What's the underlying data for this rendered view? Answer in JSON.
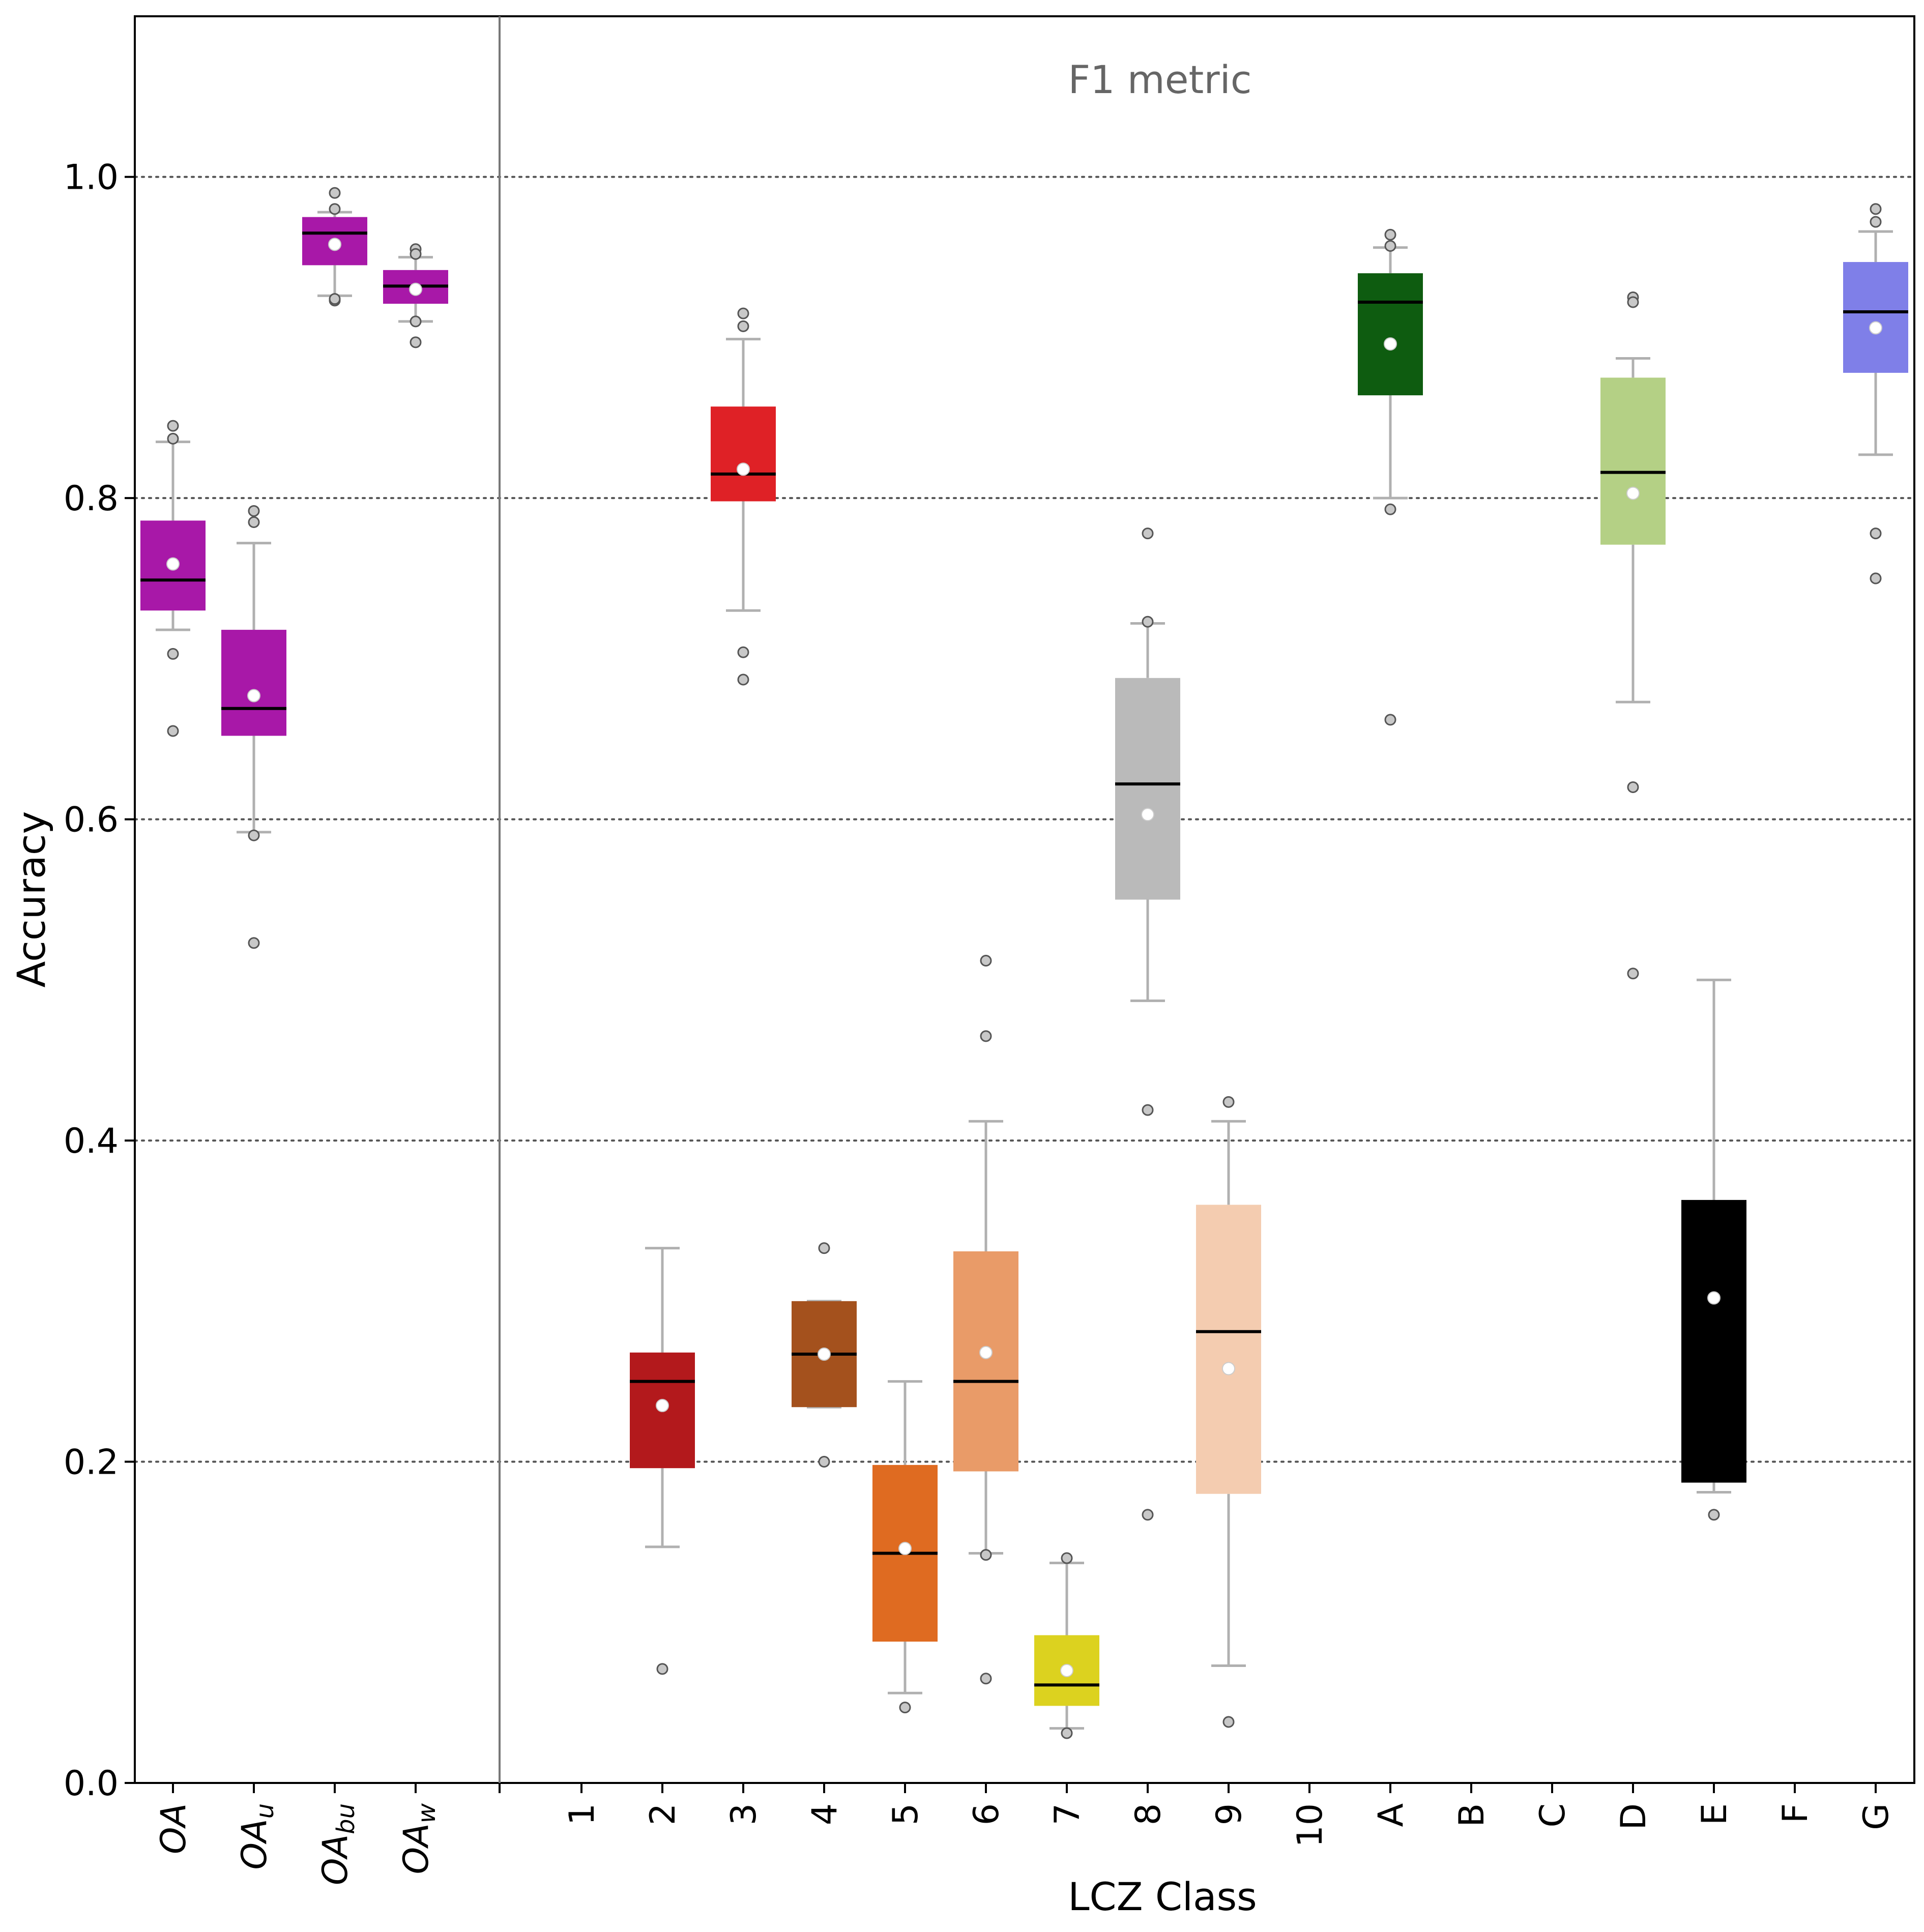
{
  "chart_data": {
    "type": "box",
    "title": "F1 metric",
    "xlabel": "LCZ Class",
    "ylabel": "Accuracy",
    "ylim": [
      0.0,
      1.1
    ],
    "yticks": [
      0.0,
      0.2,
      0.4,
      0.6,
      0.8,
      1.0
    ],
    "ytick_labels": [
      "0.0",
      "0.2",
      "0.4",
      "0.6",
      "0.8",
      "1.0"
    ],
    "grid": "horizontal dotted at each y tick",
    "colors": {
      "whisker": "#b0b0b0",
      "median": "#000000",
      "mean_marker": "#ffffff",
      "outlier_fill": "#c8c8c8",
      "outlier_edge": "#555555",
      "title_text": "#666666"
    },
    "groups": [
      {
        "panel": "overall",
        "categories": [
          {
            "key": "OA",
            "base": "OA",
            "sub": "",
            "color": "#a818a8",
            "q1": 0.73,
            "median": 0.749,
            "q3": 0.786,
            "mean": 0.759,
            "whisker_low": 0.718,
            "whisker_high": 0.835,
            "outliers": [
              0.845,
              0.837,
              0.703,
              0.655
            ]
          },
          {
            "key": "OA_u",
            "base": "OA",
            "sub": "u",
            "color": "#a818a8",
            "q1": 0.652,
            "median": 0.669,
            "q3": 0.718,
            "mean": 0.677,
            "whisker_low": 0.592,
            "whisker_high": 0.772,
            "outliers": [
              0.792,
              0.785,
              0.59,
              0.523
            ]
          },
          {
            "key": "OA_bu",
            "base": "OA",
            "sub": "bu",
            "color": "#a818a8",
            "q1": 0.945,
            "median": 0.965,
            "q3": 0.975,
            "mean": 0.958,
            "whisker_low": 0.926,
            "whisker_high": 0.978,
            "outliers": [
              0.99,
              0.98,
              0.923,
              0.924
            ]
          },
          {
            "key": "OA_w",
            "base": "OA",
            "sub": "w",
            "color": "#a818a8",
            "q1": 0.921,
            "median": 0.932,
            "q3": 0.942,
            "mean": 0.93,
            "whisker_low": 0.91,
            "whisker_high": 0.95,
            "outliers": [
              0.955,
              0.952,
              0.91,
              0.897
            ]
          }
        ]
      },
      {
        "panel": "lcz",
        "categories": [
          {
            "key": "1",
            "base": "1",
            "sub": "",
            "color": null
          },
          {
            "key": "2",
            "base": "2",
            "sub": "",
            "color": "#b3191c",
            "q1": 0.196,
            "median": 0.25,
            "q3": 0.268,
            "mean": 0.235,
            "whisker_low": 0.147,
            "whisker_high": 0.333,
            "outliers": [
              0.071
            ]
          },
          {
            "key": "3",
            "base": "3",
            "sub": "",
            "color": "#df2126",
            "q1": 0.798,
            "median": 0.815,
            "q3": 0.857,
            "mean": 0.818,
            "whisker_low": 0.73,
            "whisker_high": 0.899,
            "outliers": [
              0.915,
              0.907,
              0.704,
              0.687
            ]
          },
          {
            "key": "4",
            "base": "4",
            "sub": "",
            "color": "#a4511d",
            "q1": 0.234,
            "median": 0.267,
            "q3": 0.3,
            "mean": 0.267,
            "whisker_low": 0.234,
            "whisker_high": 0.3,
            "outliers": [
              0.333,
              0.2
            ]
          },
          {
            "key": "5",
            "base": "5",
            "sub": "",
            "color": "#df6b21",
            "q1": 0.088,
            "median": 0.143,
            "q3": 0.198,
            "mean": 0.146,
            "whisker_low": 0.056,
            "whisker_high": 0.25,
            "outliers": [
              0.047
            ]
          },
          {
            "key": "6",
            "base": "6",
            "sub": "",
            "color": "#e99b68",
            "q1": 0.194,
            "median": 0.25,
            "q3": 0.331,
            "mean": 0.268,
            "whisker_low": 0.143,
            "whisker_high": 0.412,
            "outliers": [
              0.512,
              0.465,
              0.142,
              0.065
            ]
          },
          {
            "key": "7",
            "base": "7",
            "sub": "",
            "color": "#dcd21f",
            "q1": 0.048,
            "median": 0.061,
            "q3": 0.092,
            "mean": 0.07,
            "whisker_low": 0.034,
            "whisker_high": 0.137,
            "outliers": [
              0.14,
              0.031
            ]
          },
          {
            "key": "8",
            "base": "8",
            "sub": "",
            "color": "#bababa",
            "q1": 0.55,
            "median": 0.622,
            "q3": 0.688,
            "mean": 0.603,
            "whisker_low": 0.487,
            "whisker_high": 0.722,
            "outliers": [
              0.778,
              0.723,
              0.419,
              0.167
            ]
          },
          {
            "key": "9",
            "base": "9",
            "sub": "",
            "color": "#f4ccb0",
            "q1": 0.18,
            "median": 0.281,
            "q3": 0.36,
            "mean": 0.258,
            "whisker_low": 0.073,
            "whisker_high": 0.412,
            "outliers": [
              0.424,
              0.038
            ]
          },
          {
            "key": "10",
            "base": "10",
            "sub": "",
            "color": null
          },
          {
            "key": "A",
            "base": "A",
            "sub": "",
            "color": "#0e5c10",
            "q1": 0.864,
            "median": 0.922,
            "q3": 0.94,
            "mean": 0.896,
            "whisker_low": 0.8,
            "whisker_high": 0.956,
            "outliers": [
              0.964,
              0.957,
              0.793,
              0.662
            ]
          },
          {
            "key": "B",
            "base": "B",
            "sub": "",
            "color": null
          },
          {
            "key": "C",
            "base": "C",
            "sub": "",
            "color": null
          },
          {
            "key": "D",
            "base": "D",
            "sub": "",
            "color": "#b4d085",
            "q1": 0.771,
            "median": 0.816,
            "q3": 0.875,
            "mean": 0.803,
            "whisker_low": 0.673,
            "whisker_high": 0.887,
            "outliers": [
              0.925,
              0.922,
              0.62,
              0.504
            ]
          },
          {
            "key": "E",
            "base": "E",
            "sub": "",
            "color": "#000000",
            "q1": 0.187,
            "median": 0.278,
            "q3": 0.363,
            "mean": 0.302,
            "whisker_low": 0.181,
            "whisker_high": 0.5,
            "outliers": [
              0.167
            ]
          },
          {
            "key": "F",
            "base": "F",
            "sub": "",
            "color": null
          },
          {
            "key": "G",
            "base": "G",
            "sub": "",
            "color": "#7f7fe8",
            "q1": 0.878,
            "median": 0.916,
            "q3": 0.947,
            "mean": 0.906,
            "whisker_low": 0.827,
            "whisker_high": 0.966,
            "outliers": [
              0.98,
              0.972,
              0.778,
              0.75
            ]
          }
        ]
      }
    ]
  }
}
